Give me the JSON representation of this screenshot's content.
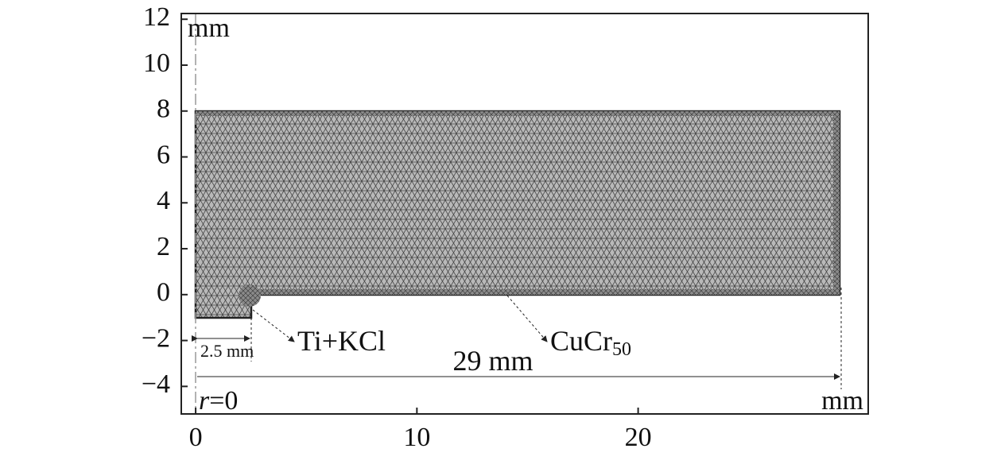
{
  "chart_data": {
    "type": "mesh",
    "xlim": [
      -0.65,
      30.4
    ],
    "ylim": [
      -5.2,
      12.25
    ],
    "xticks": [
      0,
      10,
      20
    ],
    "yticks": [
      {
        "value": -4,
        "label": "−4"
      },
      {
        "value": -2,
        "label": "−2"
      },
      0,
      2,
      4,
      6,
      8,
      10,
      12
    ],
    "y_unit": "mm",
    "x_unit": "mm",
    "axis_origin_label": {
      "var": "r",
      "rest": "=0"
    },
    "dimension_small": "2.5 mm",
    "dimension_large": "29 mm",
    "label_inner": "Ti+KCl",
    "label_outer": {
      "text": "CuCr",
      "subscript": "50"
    }
  }
}
